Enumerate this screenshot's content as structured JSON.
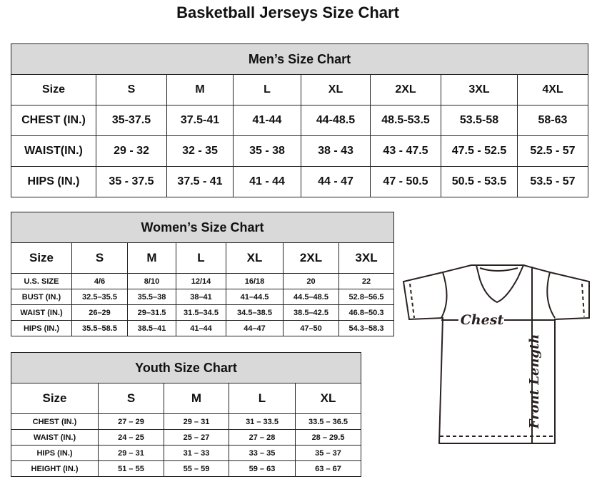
{
  "title": "Basketball Jerseys Size Chart",
  "men": {
    "title": "Men’s Size Chart",
    "headers": [
      "Size",
      "S",
      "M",
      "L",
      "XL",
      "2XL",
      "3XL",
      "4XL"
    ],
    "rows": [
      [
        "CHEST (IN.)",
        "35-37.5",
        "37.5-41",
        "41-44",
        "44-48.5",
        "48.5-53.5",
        "53.5-58",
        "58-63"
      ],
      [
        "WAIST(IN.)",
        "29 - 32",
        "32 - 35",
        "35 - 38",
        "38 - 43",
        "43 - 47.5",
        "47.5 - 52.5",
        "52.5 - 57"
      ],
      [
        "HIPS (IN.)",
        "35 - 37.5",
        "37.5 - 41",
        "41 - 44",
        "44 - 47",
        "47 - 50.5",
        "50.5 - 53.5",
        "53.5 - 57"
      ]
    ]
  },
  "women": {
    "title": "Women’s Size Chart",
    "headers": [
      "Size",
      "S",
      "M",
      "L",
      "XL",
      "2XL",
      "3XL"
    ],
    "rows": [
      [
        "U.S.  SIZE",
        "4/6",
        "8/10",
        "12/14",
        "16/18",
        "20",
        "22"
      ],
      [
        "BUST  (IN.)",
        "32.5–35.5",
        "35.5–38",
        "38–41",
        "41–44.5",
        "44.5–48.5",
        "52.8–56.5"
      ],
      [
        "WAIST  (IN.)",
        "26–29",
        "29–31.5",
        "31.5–34.5",
        "34.5–38.5",
        "38.5–42.5",
        "46.8–50.3"
      ],
      [
        "HIPS  (IN.)",
        "35.5–58.5",
        "38.5–41",
        "41–44",
        "44–47",
        "47–50",
        "54.3–58.3"
      ]
    ]
  },
  "youth": {
    "title": "Youth Size Chart",
    "headers": [
      "Size",
      "S",
      "M",
      "L",
      "XL"
    ],
    "rows": [
      [
        "CHEST  (IN.)",
        "27  –  29",
        "29  –  31",
        "31  –  33.5",
        "33.5  –  36.5"
      ],
      [
        "WAIST  (IN.)",
        "24  –  25",
        "25  –  27",
        "27  –  28",
        "28  –  29.5"
      ],
      [
        "HIPS  (IN.)",
        "29  –  31",
        "31  –  33",
        "33  –  35",
        "35  –  37"
      ],
      [
        "HEIGHT  (IN.)",
        "51  –  55",
        "55  –  59",
        "59  –  63",
        "63  –  67"
      ]
    ]
  },
  "diagram": {
    "chest_label": "Chest",
    "length_label": "Front Length"
  }
}
